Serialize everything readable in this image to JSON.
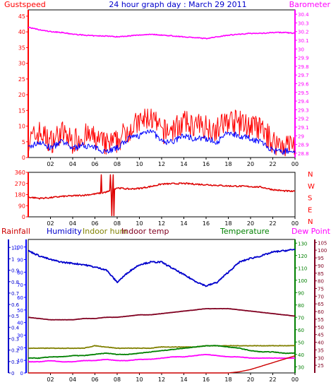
{
  "title": "24 hour graph day : March 29 2011",
  "colors": {
    "gust": "#ff0000",
    "wind": "#0000ff",
    "baro": "#ff00ff",
    "winddir": "#dd0000",
    "rain": "#cc0000",
    "humidity": "#0000cc",
    "indoor_hum": "#808000",
    "indoor_temp": "#800020",
    "temperature": "#008000",
    "dewpoint": "#ff00ff",
    "rain_axis": "#0000cc",
    "hum_axis": "#0000ff",
    "temp_axis": "#008000",
    "right_axis2": "#800020"
  },
  "chart_data": [
    {
      "type": "line",
      "id": "wind_baro",
      "labels": {
        "left": "Gustspeed",
        "right": "Barometer"
      },
      "x_ticks": [
        "02",
        "04",
        "06",
        "08",
        "10",
        "12",
        "14",
        "16",
        "18",
        "20",
        "22",
        "00"
      ],
      "y_left_ticks": [
        "0",
        "5",
        "10",
        "15",
        "20",
        "25",
        "30",
        "35",
        "40",
        "45"
      ],
      "y_right_ticks": [
        "28.8",
        "28.9",
        "29",
        "29.1",
        "29.2",
        "29.3",
        "29.4",
        "29.5",
        "29.6",
        "29.7",
        "29.8",
        "29.9",
        "30",
        "30.1",
        "30.2",
        "30.3",
        "30.4"
      ],
      "ylim_left": [
        0,
        47
      ],
      "ylim_right": [
        28.75,
        30.45
      ],
      "x_hours": [
        0,
        1,
        2,
        3,
        4,
        5,
        6,
        7,
        8,
        9,
        10,
        11,
        12,
        13,
        14,
        15,
        16,
        17,
        18,
        19,
        20,
        21,
        22,
        23,
        24
      ],
      "series": [
        {
          "key": "gust",
          "values": [
            5,
            8,
            5,
            8,
            5,
            7,
            6,
            4,
            5,
            9,
            11,
            13,
            8,
            9,
            11,
            10,
            10,
            9,
            12,
            11,
            10,
            9,
            5,
            4,
            4
          ]
        },
        {
          "key": "wind",
          "values": [
            3,
            5,
            3,
            5,
            3,
            4,
            3,
            2,
            3,
            6,
            7,
            9,
            5,
            5,
            7,
            6,
            6,
            5,
            8,
            7,
            6,
            5,
            2,
            2,
            2
          ]
        },
        {
          "key": "baro",
          "values": [
            30.25,
            30.22,
            30.2,
            30.19,
            30.17,
            30.16,
            30.15,
            30.15,
            30.14,
            30.15,
            30.16,
            30.17,
            30.16,
            30.15,
            30.14,
            30.13,
            30.12,
            30.14,
            30.16,
            30.17,
            30.18,
            30.18,
            30.19,
            30.19,
            30.18
          ]
        }
      ]
    },
    {
      "type": "line",
      "id": "wind_direction",
      "labels": {
        "right": [
          "N",
          "W",
          "S",
          "E",
          "N"
        ]
      },
      "x_ticks": [
        "02",
        "04",
        "06",
        "08",
        "10",
        "12",
        "14",
        "16",
        "18",
        "20",
        "22",
        "00"
      ],
      "y_ticks": [
        "0",
        "90",
        "180",
        "270",
        "360"
      ],
      "ylim": [
        0,
        360
      ],
      "x_hours": [
        0,
        1,
        2,
        3,
        4,
        5,
        6,
        7,
        8,
        9,
        10,
        11,
        12,
        13,
        14,
        15,
        16,
        17,
        18,
        19,
        20,
        21,
        22,
        23,
        24
      ],
      "values": [
        160,
        150,
        155,
        165,
        170,
        175,
        185,
        200,
        235,
        225,
        230,
        245,
        265,
        268,
        270,
        265,
        260,
        255,
        250,
        248,
        245,
        240,
        220,
        210,
        205
      ]
    },
    {
      "type": "line",
      "id": "temp_hum",
      "labels": {
        "rain": "Rainfall",
        "humidity": "Humidity",
        "indoor_hum": "Indoor hum",
        "indoor_temp": "Indoor temp",
        "temperature": "Temperature",
        "dewpoint": "Dew Point"
      },
      "x_ticks": [
        "02",
        "04",
        "06",
        "08",
        "10",
        "12",
        "14",
        "16",
        "18",
        "20",
        "22",
        "00"
      ],
      "y_rain_ticks": [
        "0",
        "0.1",
        "0.2",
        "0.3",
        "0.4",
        "0.5",
        "0.6",
        "0.7",
        "0.8",
        "0.9",
        "1",
        "1.1"
      ],
      "y_hum_ticks": [
        "0",
        "10",
        "20",
        "30",
        "40",
        "50",
        "60",
        "70",
        "80",
        "90",
        "100"
      ],
      "y_temp_ticks": [
        "30",
        "40",
        "50",
        "60",
        "70",
        "80",
        "90",
        "100",
        "110",
        "120",
        "130"
      ],
      "y_right2_ticks": [
        "25",
        "30",
        "35",
        "40",
        "45",
        "50",
        "55",
        "60",
        "65",
        "70",
        "75",
        "80",
        "85",
        "90",
        "95",
        "100",
        "105"
      ],
      "ylim_rain": [
        0,
        1.17
      ],
      "ylim_hum": [
        0,
        106
      ],
      "ylim_temp": [
        25,
        133
      ],
      "x_hours": [
        0,
        1,
        2,
        3,
        4,
        5,
        6,
        7,
        8,
        9,
        10,
        11,
        12,
        13,
        14,
        15,
        16,
        17,
        18,
        19,
        20,
        21,
        22,
        23,
        24
      ],
      "series": [
        {
          "key": "humidity",
          "values": [
            97,
            93,
            90,
            88,
            87,
            86,
            84,
            82,
            72,
            80,
            86,
            88,
            88,
            83,
            78,
            73,
            69,
            72,
            80,
            88,
            91,
            93,
            96,
            97,
            98
          ]
        },
        {
          "key": "indoor_hum",
          "values": [
            45,
            45,
            45,
            45,
            45,
            45,
            47,
            46,
            45,
            45,
            45,
            45,
            46,
            46,
            46,
            46,
            47,
            47,
            47,
            47,
            47,
            47,
            47,
            47,
            47
          ]
        },
        {
          "key": "indoor_temp",
          "values": [
            70,
            69,
            68,
            68,
            68,
            69,
            69,
            70,
            70,
            71,
            72,
            72,
            73,
            74,
            75,
            76,
            77,
            77,
            77,
            76,
            75,
            74,
            73,
            72,
            71
          ]
        },
        {
          "key": "temperature",
          "values": [
            37,
            37,
            38,
            38,
            39,
            39,
            40,
            41,
            40,
            40,
            41,
            42,
            43,
            44,
            45,
            46,
            47,
            47,
            46,
            45,
            43,
            42,
            42,
            41,
            41
          ]
        },
        {
          "key": "dewpoint",
          "values": [
            34,
            34,
            35,
            34,
            34,
            35,
            35,
            36,
            35,
            35,
            36,
            36,
            37,
            38,
            38,
            39,
            40,
            39,
            38,
            38,
            37,
            37,
            37,
            37,
            37
          ]
        },
        {
          "key": "rain",
          "values": [
            0,
            0,
            0,
            0,
            0,
            0,
            0,
            0,
            0,
            0,
            0,
            0,
            0,
            0,
            0,
            0,
            0,
            0,
            0,
            0.01,
            0.03,
            0.06,
            0.09,
            0.12,
            0.15
          ]
        }
      ]
    }
  ]
}
